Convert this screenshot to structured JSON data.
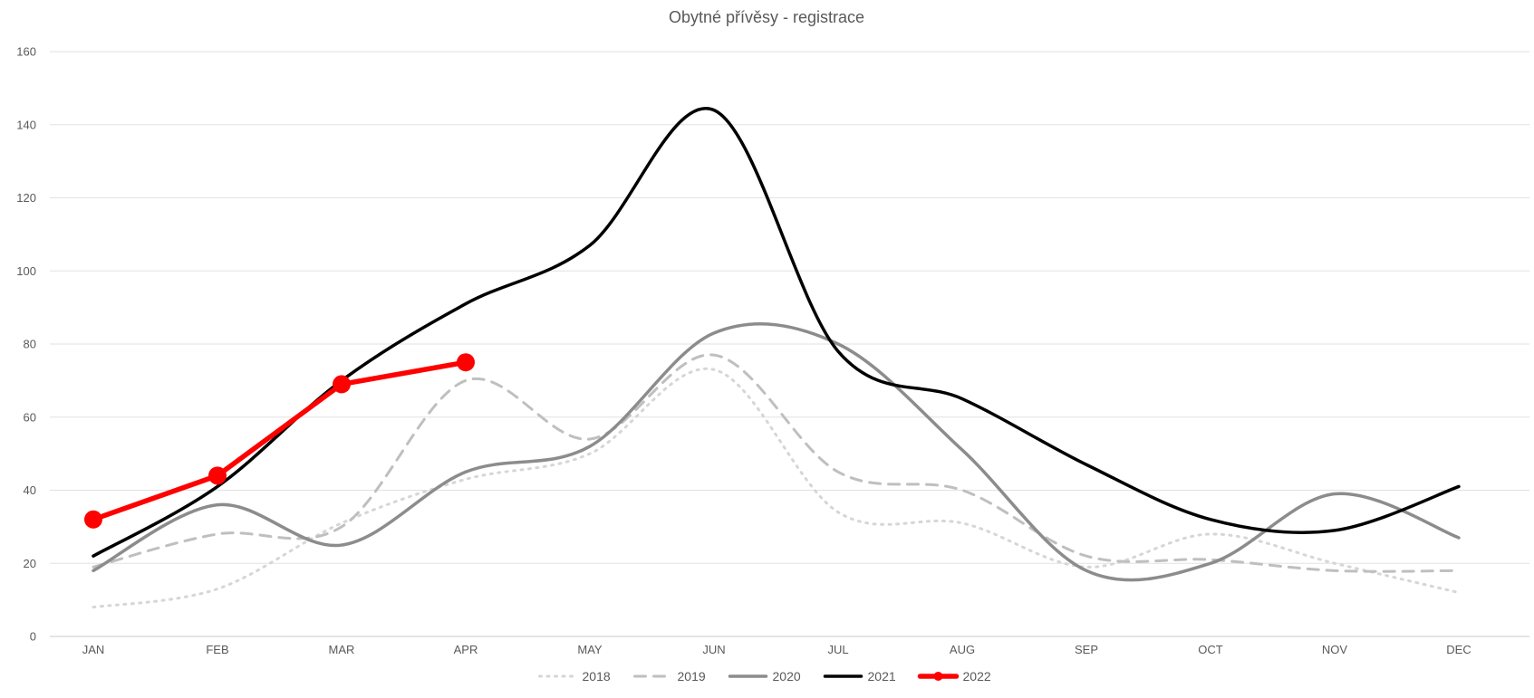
{
  "title": "Obytné přívěsy - registrace",
  "chart_data": {
    "type": "line",
    "title": "Obytné přívěsy - registrace",
    "categories": [
      "JAN",
      "FEB",
      "MAR",
      "APR",
      "MAY",
      "JUN",
      "JUL",
      "AUG",
      "SEP",
      "OCT",
      "NOV",
      "DEC"
    ],
    "series": [
      {
        "name": "2018",
        "style": "dotted",
        "color": "#d6d6d6",
        "width": 3,
        "values": [
          8,
          13,
          31,
          43,
          50,
          73,
          34,
          31,
          19,
          28,
          20,
          12
        ]
      },
      {
        "name": "2019",
        "style": "dashed",
        "color": "#bfbfbf",
        "width": 3,
        "values": [
          19,
          28,
          30,
          70,
          54,
          77,
          45,
          40,
          22,
          21,
          18,
          18
        ]
      },
      {
        "name": "2020",
        "style": "solid",
        "color": "#8c8c8c",
        "width": 3.5,
        "values": [
          18,
          36,
          25,
          45,
          52,
          83,
          80,
          51,
          18,
          20,
          39,
          27
        ]
      },
      {
        "name": "2021",
        "style": "solid",
        "color": "#000000",
        "width": 3.5,
        "values": [
          22,
          41,
          70,
          91,
          107,
          144,
          78,
          65,
          47,
          32,
          29,
          41
        ]
      },
      {
        "name": "2022",
        "style": "marker-line",
        "color": "#ff0000",
        "width": 5.5,
        "values": [
          32,
          44,
          69,
          75
        ]
      }
    ],
    "ylim": [
      0,
      160
    ],
    "ytick_step": 20,
    "y_ticks": [
      "0",
      "20",
      "40",
      "60",
      "80",
      "100",
      "120",
      "140",
      "160"
    ],
    "grid": true,
    "gridline_color": "#e2e2e2",
    "axisline_color": "#c9c9c9",
    "text_color": "#595959",
    "legend_position": "bottom",
    "legend_entries": [
      "2018",
      "2019",
      "2020",
      "2021",
      "2022"
    ]
  }
}
